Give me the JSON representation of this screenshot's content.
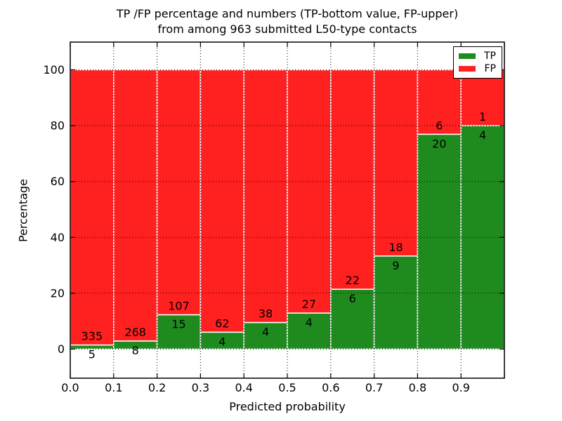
{
  "chart_data": {
    "type": "bar",
    "stacked": true,
    "values_are": "percent of bin total; annotations show raw counts (TP bottom, FP upper)",
    "title_line1": "TP /FP percentage and numbers (TP-bottom value, FP-upper)",
    "title_line2": "from among 963 submitted L50-type contacts",
    "total_contacts": 963,
    "xlabel": "Predicted probability",
    "ylabel": "Percentage",
    "categories": [
      "0.0-0.1",
      "0.1-0.2",
      "0.2-0.3",
      "0.3-0.4",
      "0.4-0.5",
      "0.5-0.6",
      "0.6-0.7",
      "0.7-0.8",
      "0.8-0.9",
      "0.9-1.0"
    ],
    "x_tick_labels": [
      "0.0",
      "0.1",
      "0.2",
      "0.3",
      "0.4",
      "0.5",
      "0.6",
      "0.7",
      "0.8",
      "0.9"
    ],
    "y_ticks": [
      0,
      20,
      40,
      60,
      80,
      100
    ],
    "xlim": [
      0.0,
      1.0
    ],
    "ylim": [
      -10.4,
      109.9
    ],
    "bin_width": 0.1,
    "series": [
      {
        "name": "TP",
        "color": "#1f8b1f",
        "counts": [
          5,
          8,
          15,
          4,
          4,
          4,
          6,
          9,
          20,
          4
        ],
        "percent": [
          1.47,
          2.9,
          12.3,
          6.06,
          9.52,
          12.9,
          21.43,
          33.33,
          76.92,
          80.0
        ]
      },
      {
        "name": "FP",
        "color": "#ff2020",
        "counts": [
          335,
          268,
          107,
          62,
          38,
          27,
          22,
          18,
          6,
          1
        ],
        "percent": [
          98.53,
          97.1,
          87.7,
          93.94,
          90.48,
          87.1,
          78.57,
          66.67,
          23.08,
          20.0
        ]
      }
    ],
    "legend": {
      "position": "upper-right",
      "labels": [
        "TP",
        "FP"
      ]
    },
    "grid": {
      "style": "dotted",
      "color": "#000000",
      "above_bars": true
    },
    "bar_edge_color": "#ffffff",
    "background": "#ffffff"
  }
}
